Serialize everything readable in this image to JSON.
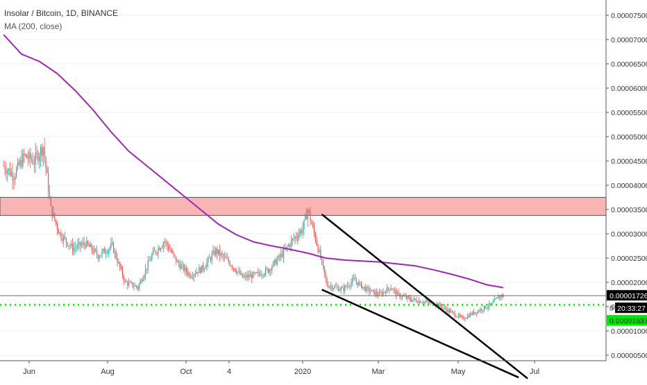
{
  "header": {
    "symbol": "Insolar / Bitcoin, 1D, BINANCE",
    "indicator": "MA (200, close)"
  },
  "price_axis": {
    "ticks": [
      "0.00007500",
      "0.00007000",
      "0.00006500",
      "0.00006000",
      "0.00005500",
      "0.00005000",
      "0.00004500",
      "0.00004000",
      "0.00003500",
      "0.00003000",
      "0.00002500",
      "0.00002000",
      "0.00001500",
      "0.00001000",
      "0.00000500"
    ],
    "last_price_label": "0.00001726",
    "countdown_label": "20:33:27",
    "countdown_prefix": "0",
    "support_label": "0.00001537"
  },
  "time_axis": {
    "labels": [
      "Jun",
      "Aug",
      "Oct",
      "4",
      "2020",
      "Mar",
      "May",
      "Jul"
    ]
  },
  "colors": {
    "bull_candle": "#26a69a",
    "bear_candle": "#ef5350",
    "ma_line": "#9c27b0",
    "resistance_zone": "#f7a1a1",
    "support_dotted": "#00e600",
    "trendline": "#000000",
    "label_bg_last": "#000000",
    "label_bg_support": "#00e600"
  },
  "chart_data": {
    "type": "candlestick",
    "title": "Insolar / Bitcoin, 1D, BINANCE",
    "ylim": [
      3.5e-06,
      7.8e-05
    ],
    "series": [
      {
        "name": "MA (200, close)",
        "kind": "line",
        "points": [
          [
            "2019-05-12",
            7.1e-05
          ],
          [
            "2019-05-26",
            6.7e-05
          ],
          [
            "2019-06-09",
            6.55e-05
          ],
          [
            "2019-06-23",
            6.3e-05
          ],
          [
            "2019-07-07",
            5.95e-05
          ],
          [
            "2019-07-21",
            5.55e-05
          ],
          [
            "2019-08-04",
            5.1e-05
          ],
          [
            "2019-08-18",
            4.7e-05
          ],
          [
            "2019-09-01",
            4.4e-05
          ],
          [
            "2019-09-15",
            4.1e-05
          ],
          [
            "2019-09-29",
            3.8e-05
          ],
          [
            "2019-10-13",
            3.5e-05
          ],
          [
            "2019-10-27",
            3.2e-05
          ],
          [
            "2019-11-10",
            2.98e-05
          ],
          [
            "2019-11-24",
            2.83e-05
          ],
          [
            "2019-12-08",
            2.75e-05
          ],
          [
            "2019-12-22",
            2.68e-05
          ],
          [
            "2020-01-05",
            2.6e-05
          ],
          [
            "2020-01-19",
            2.5e-05
          ],
          [
            "2020-02-02",
            2.46e-05
          ],
          [
            "2020-02-16",
            2.44e-05
          ],
          [
            "2020-03-01",
            2.42e-05
          ],
          [
            "2020-03-15",
            2.38e-05
          ],
          [
            "2020-03-29",
            2.34e-05
          ],
          [
            "2020-04-12",
            2.26e-05
          ],
          [
            "2020-04-26",
            2.17e-05
          ],
          [
            "2020-05-10",
            2.07e-05
          ],
          [
            "2020-05-24",
            1.95e-05
          ],
          [
            "2020-06-06",
            1.89e-05
          ]
        ]
      },
      {
        "name": "",
        "kind": "close",
        "points": [
          [
            "2019-05-12",
            4.4e-05
          ],
          [
            "2019-05-20",
            4.2e-05
          ],
          [
            "2019-05-28",
            4.6e-05
          ],
          [
            "2019-06-05",
            4.5e-05
          ],
          [
            "2019-06-12",
            4.8e-05
          ],
          [
            "2019-06-18",
            3.5e-05
          ],
          [
            "2019-06-25",
            3e-05
          ],
          [
            "2019-07-05",
            2.7e-05
          ],
          [
            "2019-07-15",
            2.8e-05
          ],
          [
            "2019-07-25",
            2.55e-05
          ],
          [
            "2019-08-05",
            2.75e-05
          ],
          [
            "2019-08-15",
            2e-05
          ],
          [
            "2019-08-25",
            1.9e-05
          ],
          [
            "2019-09-05",
            2.55e-05
          ],
          [
            "2019-09-15",
            2.85e-05
          ],
          [
            "2019-09-25",
            2.4e-05
          ],
          [
            "2019-10-05",
            2.15e-05
          ],
          [
            "2019-10-15",
            2.3e-05
          ],
          [
            "2019-10-25",
            2.65e-05
          ],
          [
            "2019-11-05",
            2.4e-05
          ],
          [
            "2019-11-15",
            2.1e-05
          ],
          [
            "2019-11-25",
            2.15e-05
          ],
          [
            "2019-12-05",
            2.25e-05
          ],
          [
            "2019-12-15",
            2.55e-05
          ],
          [
            "2019-12-25",
            2.9e-05
          ],
          [
            "2020-01-01",
            3.1e-05
          ],
          [
            "2020-01-05",
            3.5e-05
          ],
          [
            "2020-01-10",
            3e-05
          ],
          [
            "2020-01-15",
            2.5e-05
          ],
          [
            "2020-01-20",
            1.95e-05
          ],
          [
            "2020-02-01",
            1.85e-05
          ],
          [
            "2020-02-10",
            2.05e-05
          ],
          [
            "2020-02-20",
            1.85e-05
          ],
          [
            "2020-03-01",
            1.75e-05
          ],
          [
            "2020-03-10",
            1.9e-05
          ],
          [
            "2020-03-15",
            1.75e-05
          ],
          [
            "2020-03-25",
            1.65e-05
          ],
          [
            "2020-04-05",
            1.6e-05
          ],
          [
            "2020-04-15",
            1.55e-05
          ],
          [
            "2020-04-25",
            1.4e-05
          ],
          [
            "2020-05-05",
            1.25e-05
          ],
          [
            "2020-05-12",
            1.35e-05
          ],
          [
            "2020-05-20",
            1.45e-05
          ],
          [
            "2020-05-28",
            1.55e-05
          ],
          [
            "2020-06-03",
            1.72e-05
          ]
        ]
      }
    ],
    "annotations": {
      "resistance_zone": [
        3.38e-05,
        3.75e-05
      ],
      "last_price": 1.726e-05,
      "support_level": 1.537e-05,
      "wedge_upper": [
        [
          "2020-01-16",
          3.4e-05
        ],
        [
          "2020-06-25",
          2e-07
        ]
      ],
      "wedge_lower": [
        [
          "2020-01-16",
          1.85e-05
        ],
        [
          "2020-06-18",
          4e-07
        ]
      ]
    }
  }
}
